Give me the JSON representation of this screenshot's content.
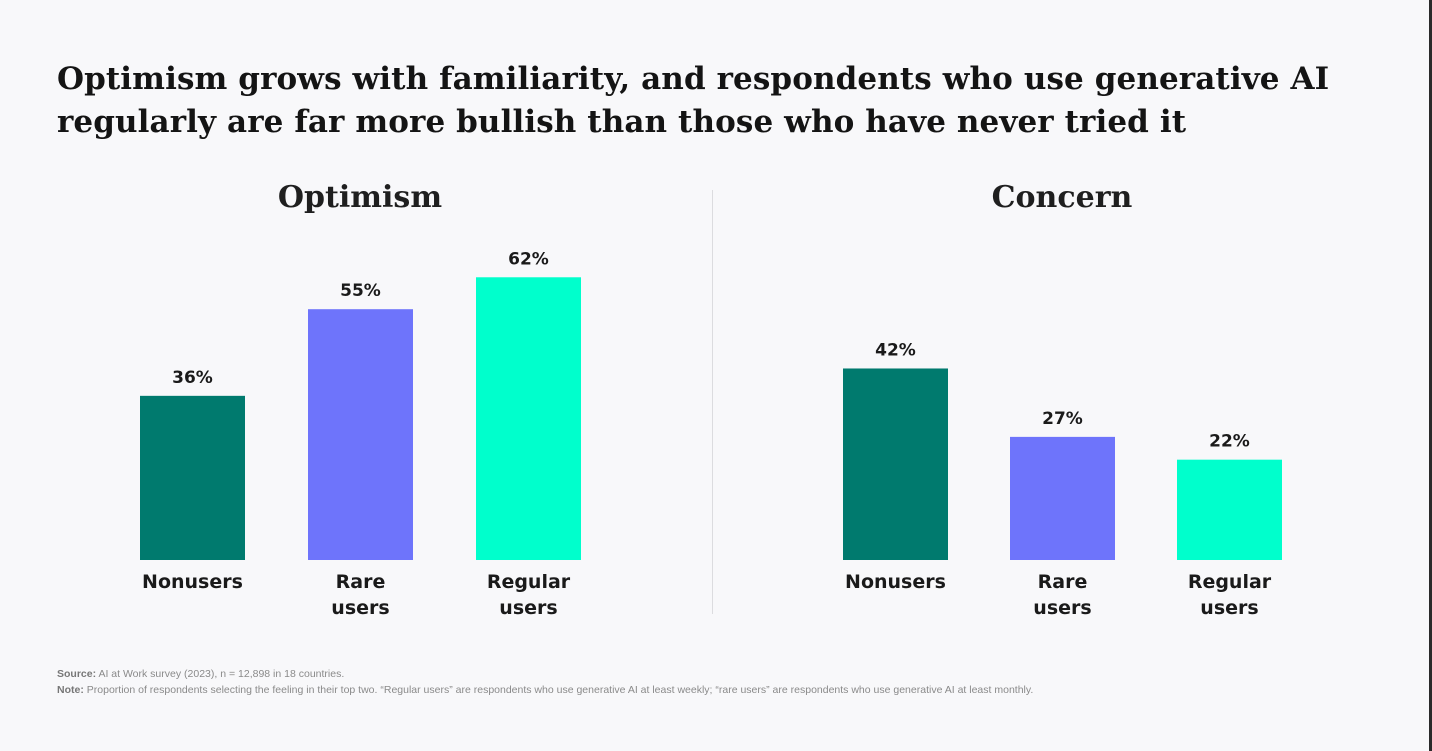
{
  "headline": {
    "line1": "Optimism grows with familiarity, and respondents who use generative AI",
    "line2": "regularly are far more bullish than those who have never tried it"
  },
  "colors": {
    "nonusers": "#007a6e",
    "rare_users": "#6e74fb",
    "regular_users": "#00ffcc"
  },
  "chart_data": [
    {
      "type": "bar",
      "title": "Optimism",
      "categories": [
        [
          "Nonusers"
        ],
        [
          "Rare",
          "users"
        ],
        [
          "Regular",
          "users"
        ]
      ],
      "values": [
        36,
        55,
        62
      ],
      "value_labels": [
        "36%",
        "55%",
        "62%"
      ],
      "ylim": [
        0,
        100
      ],
      "grid": false
    },
    {
      "type": "bar",
      "title": "Concern",
      "categories": [
        [
          "Nonusers"
        ],
        [
          "Rare",
          "users"
        ],
        [
          "Regular",
          "users"
        ]
      ],
      "values": [
        42,
        27,
        22
      ],
      "value_labels": [
        "42%",
        "27%",
        "22%"
      ],
      "ylim": [
        0,
        100
      ],
      "grid": false
    }
  ],
  "footnotes": {
    "source_label": "Source:",
    "source_text": "AI at Work survey (2023), n = 12,898 in 18 countries.",
    "note_label": "Note:",
    "note_text": "Proportion of respondents selecting the feeling in their top two. “Regular users” are respondents who use generative AI at least weekly; “rare users” are respondents who use generative AI at least monthly."
  }
}
